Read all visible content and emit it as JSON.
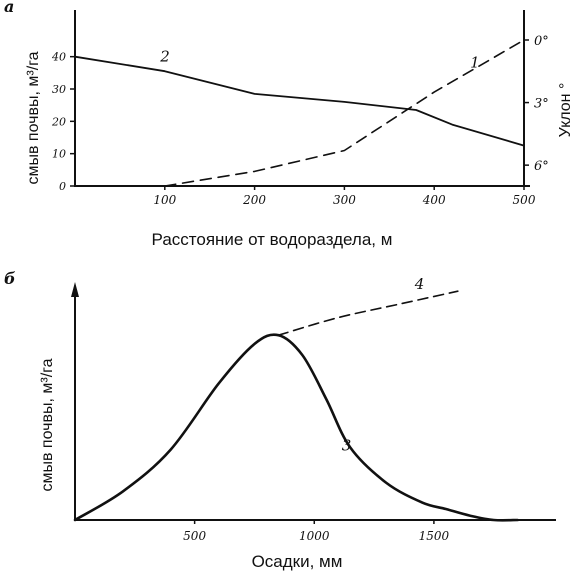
{
  "chart_data": [
    {
      "panel": "а",
      "type": "line",
      "xlabel": "Расстояние от водораздела, м",
      "ylabel": "смыв почвы, м³/га",
      "y2label": "Уклон °",
      "xlim": [
        0,
        500
      ],
      "ylim": [
        0,
        45
      ],
      "y2lim": [
        0,
        -7
      ],
      "x_ticks": [
        "100",
        "200",
        "300",
        "400",
        "500"
      ],
      "y_ticks": [
        "0",
        "10",
        "20",
        "30",
        "40"
      ],
      "y2_ticks": [
        "0°",
        "3°",
        "6°"
      ],
      "y2_tick_values": [
        0,
        -3,
        -6
      ],
      "series": [
        {
          "name": "2",
          "axis": "left",
          "style": "solid",
          "x": [
            0,
            100,
            200,
            300,
            380,
            420,
            500
          ],
          "y": [
            40,
            35.5,
            28.5,
            26,
            23.5,
            19,
            12.5
          ]
        },
        {
          "name": "1",
          "axis": "right",
          "style": "dashed",
          "x": [
            100,
            200,
            300,
            400,
            500
          ],
          "y": [
            -7,
            -6.3,
            -5.3,
            -2.5,
            0
          ]
        }
      ]
    },
    {
      "panel": "б",
      "type": "line",
      "xlabel": "Осадки, мм",
      "ylabel": "смыв почвы, м³/га",
      "xlim": [
        0,
        1950
      ],
      "ylim": [
        0,
        100
      ],
      "x_ticks": [
        "500",
        "1000",
        "1500"
      ],
      "x_tick_values": [
        500,
        1000,
        1500
      ],
      "series": [
        {
          "name": "3",
          "style": "solid",
          "x": [
            0,
            200,
            400,
            600,
            750,
            850,
            950,
            1050,
            1150,
            1300,
            1450,
            1550,
            1650,
            1750,
            1850
          ],
          "y": [
            0,
            13,
            32,
            62,
            80,
            84,
            75,
            55,
            33,
            17,
            8,
            5,
            2,
            0,
            0
          ]
        },
        {
          "name": "4",
          "style": "dashed",
          "x": [
            850,
            1100,
            1350,
            1600
          ],
          "y": [
            84,
            92,
            98,
            104
          ]
        }
      ]
    }
  ]
}
